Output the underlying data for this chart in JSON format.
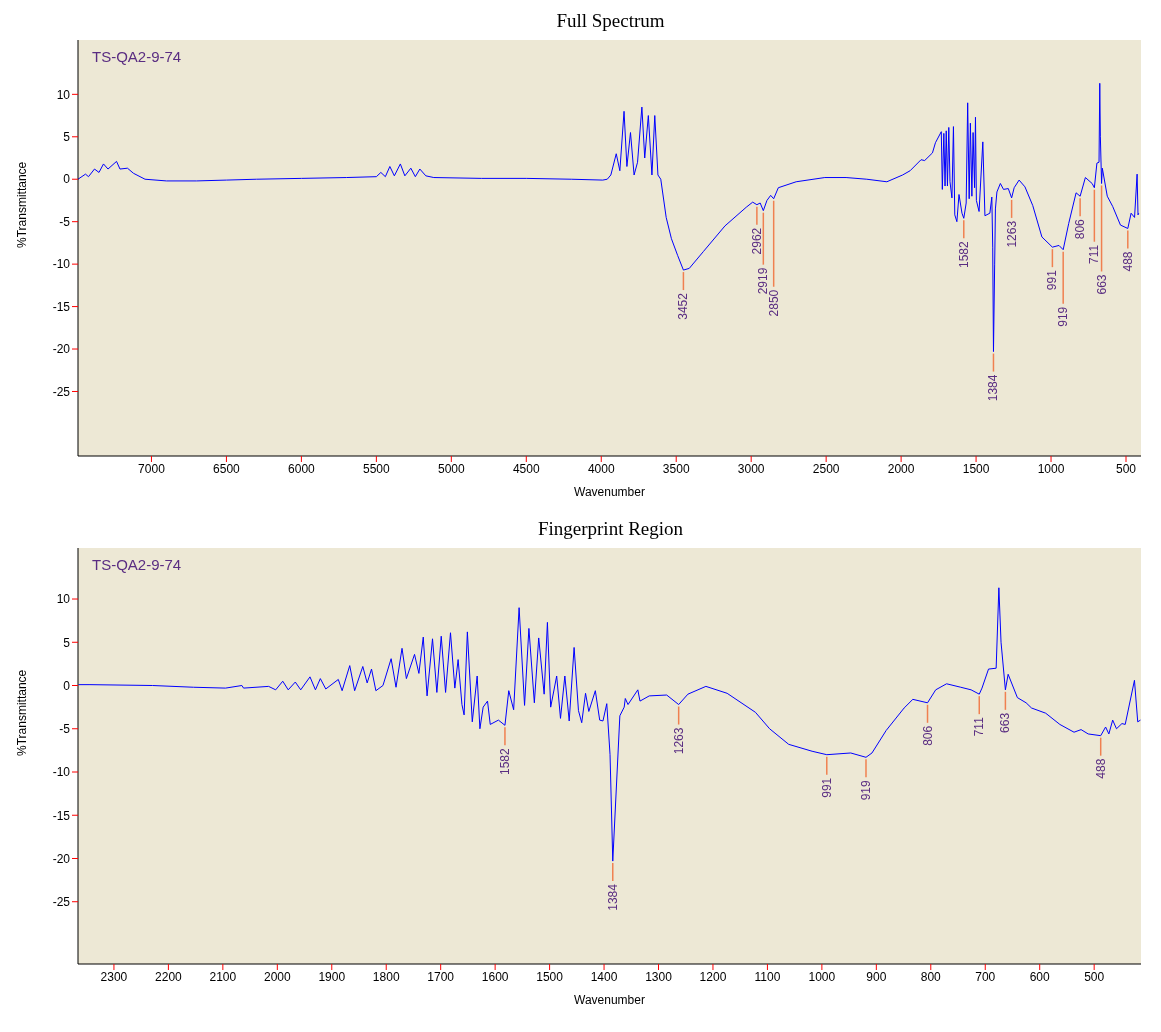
{
  "chart_data": [
    {
      "type": "line",
      "title": "Full Spectrum",
      "xlabel": "Wavenumber",
      "ylabel": "%Transmittance",
      "color": "#0000ff",
      "xlim": [
        7490,
        400
      ],
      "xticks": [
        7000,
        6500,
        6000,
        5500,
        5000,
        4500,
        4000,
        3500,
        3000,
        2500,
        2000,
        1500,
        1000,
        500
      ],
      "ylim": [
        -32.6,
        16.4
      ],
      "yticks": [
        10,
        5,
        0,
        -5,
        -10,
        -15,
        -20,
        -25
      ],
      "annotations": [
        "TS-QA2-9-74",
        {
          "text": "3452",
          "x": 3452,
          "y": -10.7
        },
        {
          "text": "2962",
          "x": 2962,
          "y": -3.0
        },
        {
          "text": "2919",
          "x": 2919,
          "y": -3.7
        },
        {
          "text": "2850",
          "x": 2850,
          "y": -2.3
        },
        {
          "text": "1582",
          "x": 1582,
          "y": -4.6
        },
        {
          "text": "1384",
          "x": 1384,
          "y": -20.3
        },
        {
          "text": "1263",
          "x": 1263,
          "y": -2.2
        },
        {
          "text": "991",
          "x": 991,
          "y": -8.0
        },
        {
          "text": "919",
          "x": 919,
          "y": -8.3
        },
        {
          "text": "806",
          "x": 806,
          "y": -2.0
        },
        {
          "text": "711",
          "x": 711,
          "y": -1.0
        },
        {
          "text": "663",
          "x": 663,
          "y": -0.5
        },
        {
          "text": "488",
          "x": 488,
          "y": -5.8
        }
      ],
      "x": [
        7490,
        7440,
        7420,
        7380,
        7350,
        7320,
        7290,
        7233,
        7210,
        7160,
        7120,
        7043,
        6900,
        6700,
        6500,
        6300,
        6000,
        5700,
        5500,
        5470,
        5440,
        5410,
        5380,
        5340,
        5310,
        5270,
        5240,
        5210,
        5170,
        5117,
        4800,
        4500,
        4200,
        3990,
        3960,
        3936,
        3900,
        3876,
        3848,
        3829,
        3805,
        3781,
        3758,
        3729,
        3710,
        3686,
        3662,
        3643,
        3622,
        3603,
        3567,
        3532,
        3490,
        3452,
        3413,
        3318,
        3175,
        3033,
        2990,
        2962,
        2940,
        2919,
        2895,
        2870,
        2850,
        2819,
        2700,
        2509,
        2367,
        2229,
        2095,
        1990,
        1940,
        1867,
        1843,
        1791,
        1771,
        1732,
        1725,
        1715,
        1707,
        1699,
        1691,
        1682,
        1674,
        1661,
        1651,
        1642,
        1628,
        1614,
        1594,
        1582,
        1566,
        1556,
        1546,
        1538,
        1528,
        1520,
        1510,
        1504,
        1498,
        1480,
        1455,
        1441,
        1408,
        1395,
        1389,
        1384,
        1376,
        1371,
        1361,
        1338,
        1317,
        1285,
        1263,
        1246,
        1213,
        1174,
        1122,
        1061,
        991,
        947,
        919,
        882,
        833,
        806,
        771,
        726,
        711,
        694,
        680,
        675,
        671,
        663,
        658,
        625,
        589,
        537,
        488,
        466,
        443,
        426,
        420,
        415
      ],
      "values": [
        0,
        0.6,
        0.3,
        1.2,
        0.8,
        1.8,
        1.2,
        2.1,
        1.2,
        1.3,
        0.7,
        0,
        -0.2,
        -0.2,
        -0.1,
        0,
        0.1,
        0.2,
        0.3,
        0.8,
        0.3,
        1.5,
        0.4,
        1.8,
        0.4,
        1.3,
        0.3,
        1.2,
        0.4,
        0.2,
        0.1,
        0.1,
        0,
        -0.1,
        0,
        0.5,
        3,
        1,
        8,
        1.5,
        5.5,
        0.5,
        2,
        8.5,
        2.5,
        7.5,
        0.5,
        7.5,
        0.5,
        0,
        -4.5,
        -7,
        -9,
        -10.7,
        -10.5,
        -8.5,
        -5.5,
        -3.3,
        -2.7,
        -3.0,
        -2.8,
        -3.7,
        -2.5,
        -1.9,
        -2.3,
        -1,
        -0.3,
        0.2,
        0.2,
        0,
        -0.3,
        0.5,
        1.0,
        2.3,
        2.2,
        3.1,
        4.3,
        5.6,
        -1.2,
        5.4,
        -0.8,
        5.7,
        -0.8,
        6.1,
        -0.3,
        -2.2,
        6.2,
        -4.2,
        -5,
        -1.8,
        -4.0,
        -4.6,
        -2.8,
        9.0,
        -2.3,
        6.6,
        -2.0,
        5.5,
        -1.0,
        7.3,
        -2.5,
        -3.8,
        4.4,
        -4.3,
        -4.0,
        -2.1,
        -8,
        -20.3,
        -10,
        -3.5,
        -1.5,
        -0.5,
        -1.2,
        -1.1,
        -2.2,
        -1.0,
        -0.1,
        -0.9,
        -3.1,
        -6.8,
        -8.0,
        -7.8,
        -8.3,
        -5.2,
        -1.6,
        -2.0,
        0.2,
        -0.5,
        -1.0,
        1.9,
        2.0,
        11.3,
        5.0,
        -0.5,
        1.3,
        -2.0,
        -3.2,
        -5.4,
        -5.8,
        -4.0,
        -4.5,
        0.6,
        -4.2,
        -4.0
      ]
    },
    {
      "type": "line",
      "title": "Fingerprint Region",
      "xlabel": "Wavenumber",
      "ylabel": "%Transmittance",
      "color": "#0000ff",
      "xlim": [
        2366,
        414
      ],
      "xticks": [
        2300,
        2200,
        2100,
        2000,
        1900,
        1800,
        1700,
        1600,
        1500,
        1400,
        1300,
        1200,
        1100,
        1000,
        900,
        800,
        700,
        600,
        500
      ],
      "ylim": [
        -32.2,
        15.9
      ],
      "yticks": [
        10,
        5,
        0,
        -5,
        -10,
        -15,
        -20,
        -25
      ],
      "annotations": [
        "TS-QA2-9-74",
        {
          "text": "1582",
          "x": 1582,
          "y": -4.6
        },
        {
          "text": "1384",
          "x": 1384,
          "y": -20.3
        },
        {
          "text": "1263",
          "x": 1263,
          "y": -2.2
        },
        {
          "text": "991",
          "x": 991,
          "y": -8.0
        },
        {
          "text": "919",
          "x": 919,
          "y": -8.3
        },
        {
          "text": "806",
          "x": 806,
          "y": -2.0
        },
        {
          "text": "711",
          "x": 711,
          "y": -1.0
        },
        {
          "text": "663",
          "x": 663,
          "y": -0.5
        },
        {
          "text": "488",
          "x": 488,
          "y": -5.8
        }
      ],
      "x": [
        2365,
        2344,
        2229,
        2154,
        2095,
        2065,
        2062,
        2016,
        2003,
        1990,
        1980,
        1967,
        1957,
        1940,
        1930,
        1921,
        1911,
        1888,
        1881,
        1867,
        1858,
        1843,
        1835,
        1827,
        1819,
        1806,
        1791,
        1782,
        1771,
        1763,
        1748,
        1740,
        1732,
        1725,
        1715,
        1707,
        1699,
        1691,
        1682,
        1674,
        1668,
        1661,
        1657,
        1651,
        1642,
        1633,
        1628,
        1622,
        1614,
        1609,
        1594,
        1582,
        1575,
        1566,
        1556,
        1546,
        1538,
        1528,
        1520,
        1510,
        1504,
        1498,
        1487,
        1480,
        1472,
        1464,
        1455,
        1447,
        1441,
        1434,
        1428,
        1416,
        1408,
        1402,
        1395,
        1389,
        1384,
        1376,
        1371,
        1363,
        1361,
        1356,
        1338,
        1334,
        1317,
        1285,
        1263,
        1246,
        1213,
        1174,
        1122,
        1096,
        1061,
        1018,
        991,
        947,
        919,
        908,
        882,
        849,
        833,
        806,
        791,
        771,
        745,
        726,
        711,
        706,
        694,
        680,
        675,
        671,
        663,
        658,
        641,
        625,
        615,
        589,
        563,
        537,
        524,
        511,
        488,
        479,
        473,
        466,
        459,
        449,
        443,
        426,
        420,
        415
      ],
      "values": [
        0.1,
        0.1,
        0,
        -0.2,
        -0.3,
        0,
        -0.3,
        -0.1,
        -0.5,
        0.5,
        -0.5,
        0.4,
        -0.5,
        1.0,
        -0.5,
        0.8,
        -0.4,
        0.7,
        -0.6,
        2.3,
        -0.6,
        2.2,
        0.3,
        1.9,
        -0.6,
        0,
        3.1,
        -0.2,
        4.3,
        0.8,
        3.6,
        1.4,
        5.6,
        -1.2,
        5.4,
        -0.8,
        5.7,
        -0.8,
        6.1,
        -0.3,
        3.0,
        -2.2,
        -3.4,
        6.2,
        -4.2,
        1.1,
        -5,
        -2.5,
        -1.8,
        -4.5,
        -4.0,
        -4.6,
        -0.6,
        -2.8,
        9.0,
        -2.3,
        6.6,
        -2.0,
        5.5,
        -1.0,
        7.3,
        -2.5,
        1.1,
        -3.8,
        1.1,
        -4.1,
        4.4,
        -2.9,
        -4.3,
        -0.9,
        -3.0,
        -0.6,
        -4.0,
        -4.1,
        -2.1,
        -8,
        -20.3,
        -10,
        -3.5,
        -2.5,
        -1.5,
        -2.2,
        -0.5,
        -1.8,
        -1.2,
        -1.1,
        -2.2,
        -1.0,
        -0.1,
        -0.9,
        -3.1,
        -5.0,
        -6.8,
        -7.6,
        -8.0,
        -7.8,
        -8.3,
        -7.8,
        -5.2,
        -2.6,
        -1.6,
        -2.0,
        -0.5,
        0.2,
        -0.2,
        -0.5,
        -1.0,
        -0.3,
        1.9,
        2.0,
        11.3,
        5.0,
        -0.5,
        1.3,
        -1.4,
        -2.0,
        -2.6,
        -3.2,
        -4.5,
        -5.4,
        -5.1,
        -5.6,
        -5.8,
        -4.8,
        -5.6,
        -4.0,
        -5.0,
        -4.4,
        -4.5,
        0.6,
        -4.2,
        -4.0
      ]
    }
  ]
}
